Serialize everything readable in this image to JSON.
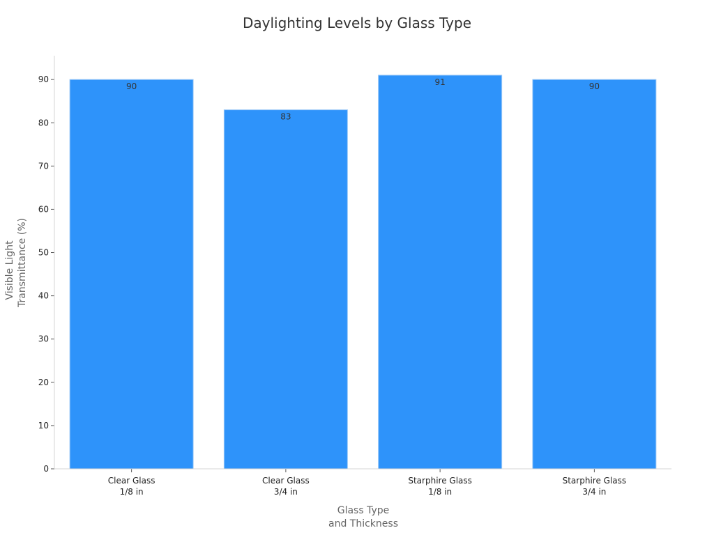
{
  "chart_data": {
    "type": "bar",
    "title": "Daylighting Levels by Glass Type",
    "xlabel": [
      "Glass Type",
      "and Thickness"
    ],
    "ylabel": [
      "Visible Light",
      "Transmittance (%)"
    ],
    "categories": [
      [
        "Clear Glass",
        "1/8 in"
      ],
      [
        "Clear Glass",
        "3/4 in"
      ],
      [
        "Starphire Glass",
        "1/8 in"
      ],
      [
        "Starphire Glass",
        "3/4 in"
      ]
    ],
    "values": [
      90,
      83,
      91,
      90
    ],
    "data_labels": [
      "90",
      "83",
      "91",
      "90"
    ],
    "ylim": [
      0,
      95.5
    ],
    "yticks": [
      0,
      10,
      20,
      30,
      40,
      50,
      60,
      70,
      80,
      90
    ],
    "grid": false,
    "legend": "none",
    "colors": {
      "bar": "#2e93fa",
      "bar_edge": "#9cc9f7"
    }
  }
}
